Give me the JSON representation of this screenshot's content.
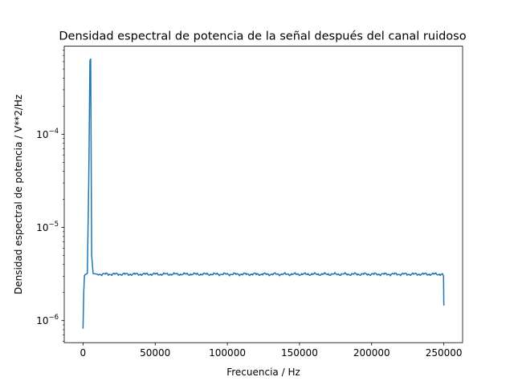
{
  "chart_data": {
    "type": "line",
    "title": "Densidad espectral de potencia de la señal después del canal ruidoso",
    "xlabel": "Frecuencia / Hz",
    "ylabel": "Densidad espectral de potencia / V**2/Hz",
    "xlim": [
      -13000,
      263000
    ],
    "ylim": [
      5.8e-07,
      0.00088
    ],
    "yscale": "log",
    "grid": false,
    "x_ticks": [
      0,
      50000,
      100000,
      150000,
      200000,
      250000
    ],
    "x_tick_labels": [
      "0",
      "50000",
      "100000",
      "150000",
      "200000",
      "250000"
    ],
    "y_ticks": [
      1e-06,
      1e-05,
      0.0001
    ],
    "y_tick_labels": [
      {
        "base": "10",
        "exp": "−6"
      },
      {
        "base": "10",
        "exp": "−5"
      },
      {
        "base": "10",
        "exp": "−4"
      }
    ],
    "line_color": "#1f77b4",
    "series": [
      {
        "baseline_level": 3.15e-06,
        "points": [
          [
            0,
            8.2e-07
          ],
          [
            500,
            2e-06
          ],
          [
            1000,
            3.05e-06
          ],
          [
            2000,
            3.15e-06
          ],
          [
            3000,
            3.2e-06
          ],
          [
            4000,
            3.4e-05
          ],
          [
            4800,
            0.00062
          ],
          [
            5300,
            0.00064
          ],
          [
            6000,
            5e-06
          ],
          [
            7000,
            3.2e-06
          ],
          [
            10000,
            3.15e-06
          ],
          [
            248000,
            3.1e-06
          ],
          [
            249000,
            3.2e-06
          ],
          [
            249800,
            3e-06
          ],
          [
            250000,
            1.45e-06
          ]
        ]
      }
    ]
  }
}
